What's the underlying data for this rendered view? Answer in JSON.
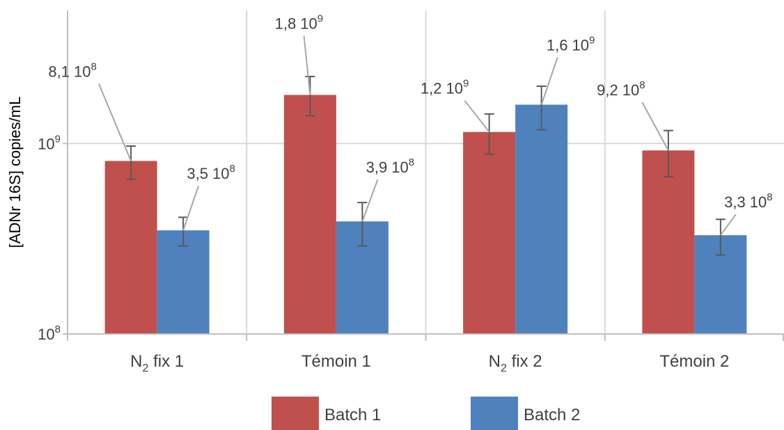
{
  "chart_data": {
    "type": "bar",
    "yscale": "log",
    "ylim": [
      100000000,
      5000000000
    ],
    "ylabel": "[ADNr 16S] copies/mL",
    "y_ticks": [
      {
        "value": 100000000,
        "base": "10",
        "exp": "8"
      },
      {
        "value": 1000000000,
        "base": "10",
        "exp": "9"
      }
    ],
    "categories": [
      {
        "main": "N",
        "sub": "2",
        "rest": " fix 1"
      },
      {
        "main": "Témoin 1",
        "sub": "",
        "rest": ""
      },
      {
        "main": "N",
        "sub": "2",
        "rest": " fix 2"
      },
      {
        "main": "Témoin 2",
        "sub": "",
        "rest": ""
      }
    ],
    "series": [
      {
        "name": "Batch 1",
        "color": "#c0504d",
        "values": [
          810000000,
          1800000000,
          1150000000,
          920000000
        ],
        "err_low": [
          650000000,
          1400000000,
          880000000,
          670000000
        ],
        "err_high": [
          970000000,
          2250000000,
          1430000000,
          1170000000
        ],
        "labels": [
          {
            "mant": "8,1 10",
            "exp": "8"
          },
          {
            "mant": "1,8 10",
            "exp": "9"
          },
          {
            "mant": "1,2 10",
            "exp": "9"
          },
          {
            "mant": "9,2 10",
            "exp": "8"
          }
        ]
      },
      {
        "name": "Batch 2",
        "color": "#4f81bd",
        "values": [
          350000000,
          390000000,
          1600000000,
          330000000
        ],
        "err_low": [
          290000000,
          290000000,
          1180000000,
          260000000
        ],
        "err_high": [
          410000000,
          490000000,
          2000000000,
          400000000
        ],
        "labels": [
          {
            "mant": "3,5 10",
            "exp": "8"
          },
          {
            "mant": "3,9 10",
            "exp": "8"
          },
          {
            "mant": "1,6 10",
            "exp": "9"
          },
          {
            "mant": "3,3 10",
            "exp": "8"
          }
        ]
      }
    ],
    "grid": true,
    "legend": "bottom-center"
  }
}
